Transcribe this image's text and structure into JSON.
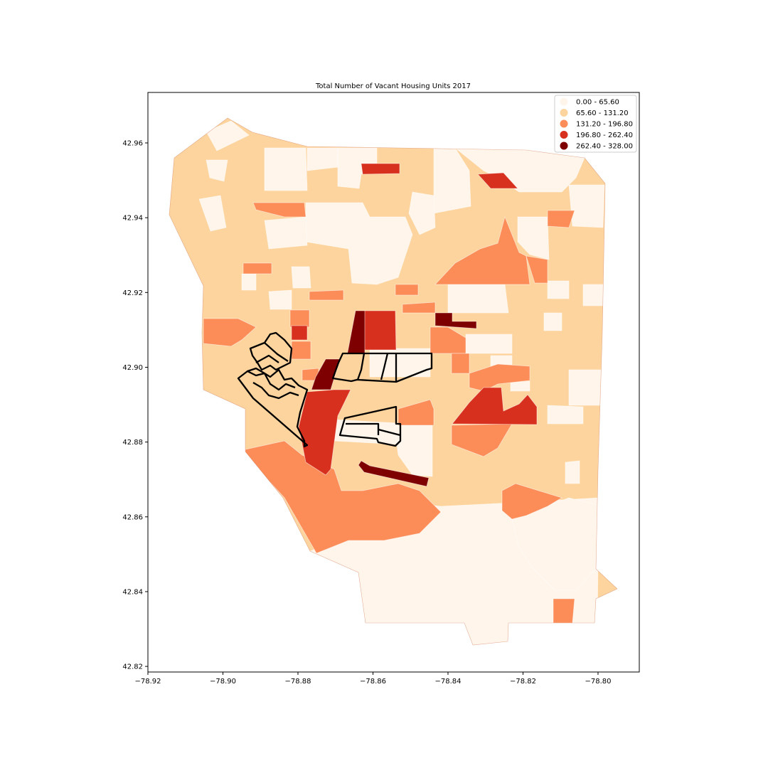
{
  "chart_data": {
    "type": "choropleth-map",
    "title": "Total Number of Vacant Housing Units 2017",
    "xlabel": "",
    "ylabel": "",
    "x_ticks": [
      "−78.92",
      "−78.90",
      "−78.88",
      "−78.86",
      "−78.84",
      "−78.82",
      "−78.80"
    ],
    "y_ticks": [
      "42.82",
      "42.84",
      "42.86",
      "42.88",
      "42.90",
      "42.92",
      "42.94",
      "42.96"
    ],
    "xlim": [
      -78.92,
      -78.789
    ],
    "ylim": [
      42.8185,
      42.9735
    ],
    "grid": false,
    "legend_position": "top-right",
    "legend": [
      {
        "label": "0.00 - 65.60",
        "color": "#fff5eb"
      },
      {
        "label": "65.60 - 131.20",
        "color": "#fdd49e"
      },
      {
        "label": "131.20 - 196.80",
        "color": "#fc8d59"
      },
      {
        "label": "196.80 - 262.40",
        "color": "#d7301f"
      },
      {
        "label": "262.40 - 328.00",
        "color": "#7f0000"
      }
    ],
    "background_class": 1,
    "highlight_outline_color": "#000000"
  }
}
